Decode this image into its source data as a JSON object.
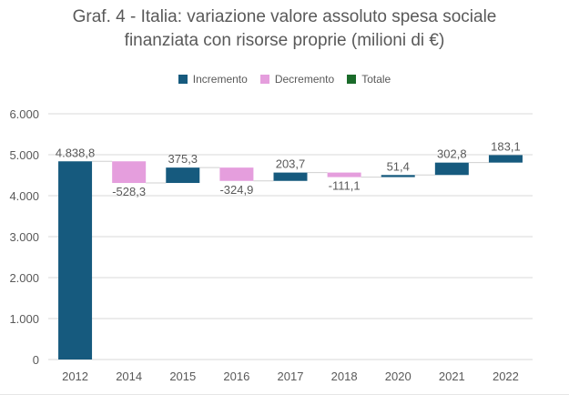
{
  "chart_data": {
    "type": "waterfall",
    "title": "Graf. 4 - Italia: variazione valore assoluto spesa sociale finanziata con risorse proprie (milioni di €)",
    "title_lines": [
      "Graf. 4 - Italia: variazione valore assoluto spesa sociale",
      "finanziata con risorse proprie (milioni di €)"
    ],
    "xlabel": "",
    "ylabel": "",
    "categories": [
      "2012",
      "2014",
      "2015",
      "2016",
      "2017",
      "2018",
      "2020",
      "2021",
      "2022"
    ],
    "values": [
      4838.8,
      -528.3,
      375.3,
      -324.9,
      203.7,
      -111.1,
      51.4,
      302.8,
      183.1
    ],
    "data_labels": [
      "4.838,8",
      "-528,3",
      "375,3",
      "-324,9",
      "203,7",
      "-111,1",
      "51,4",
      "302,8",
      "183,1"
    ],
    "kinds": [
      "increment",
      "decrement",
      "increment",
      "decrement",
      "increment",
      "decrement",
      "increment",
      "increment",
      "increment"
    ],
    "ylim": [
      0,
      6000
    ],
    "yticks": [
      0,
      1000,
      2000,
      3000,
      4000,
      5000,
      6000
    ],
    "ytick_labels": [
      "0",
      "1.000",
      "2.000",
      "3.000",
      "4.000",
      "5.000",
      "6.000"
    ],
    "grid": true,
    "legend_position": "top",
    "legend": [
      {
        "name": "Incremento",
        "color": "#165a7e"
      },
      {
        "name": "Decremento",
        "color": "#e59edd"
      },
      {
        "name": "Totale",
        "color": "#1a6b2a"
      }
    ]
  },
  "colors": {
    "increment": "#165a7e",
    "decrement": "#e59edd",
    "total": "#1a6b2a",
    "text": "#595959",
    "grid": "#d9d9d9"
  }
}
